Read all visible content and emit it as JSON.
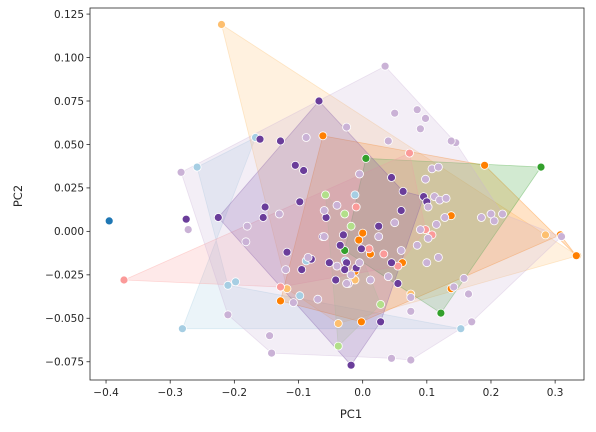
{
  "chart_data": {
    "type": "scatter",
    "title": "",
    "xlabel": "PC1",
    "ylabel": "PC2",
    "xlim": [
      -0.425,
      0.345
    ],
    "ylim": [
      -0.0855,
      0.1285
    ],
    "xticks": [
      -0.4,
      -0.3,
      -0.2,
      -0.1,
      0.0,
      0.1,
      0.2,
      0.3
    ],
    "xtick_labels": [
      "−0.4",
      "−0.3",
      "−0.2",
      "−0.1",
      "0.0",
      "0.1",
      "0.2",
      "0.3"
    ],
    "yticks": [
      -0.075,
      -0.05,
      -0.025,
      0.0,
      0.025,
      0.05,
      0.075,
      0.1,
      0.125
    ],
    "ytick_labels": [
      "−0.075",
      "−0.050",
      "−0.025",
      "0.000",
      "0.025",
      "0.050",
      "0.075",
      "0.100",
      "0.125"
    ],
    "grid": false,
    "legend": null,
    "series": [
      {
        "color": "#1f77b4",
        "hull": false,
        "points": [
          [
            -0.395,
            0.006
          ]
        ]
      },
      {
        "color": "#a6cee3",
        "hull": true,
        "hull_points": [
          [
            -0.281,
            -0.056
          ],
          [
            -0.167,
            0.054
          ],
          [
            -0.258,
            0.037
          ],
          [
            -0.21,
            -0.031
          ],
          [
            0.153,
            -0.056
          ]
        ],
        "points": [
          [
            -0.281,
            -0.056
          ],
          [
            -0.167,
            0.054
          ],
          [
            -0.258,
            0.037
          ],
          [
            -0.21,
            -0.031
          ],
          [
            -0.198,
            -0.029
          ],
          [
            -0.098,
            -0.037
          ],
          [
            -0.088,
            -0.017
          ],
          [
            -0.012,
            0.021
          ],
          [
            -0.027,
            -0.017
          ],
          [
            0.153,
            -0.056
          ]
        ]
      },
      {
        "color": "#fdbf6f",
        "hull": true,
        "hull_points": [
          [
            -0.22,
            0.119
          ],
          [
            -0.118,
            -0.033
          ],
          [
            -0.038,
            -0.053
          ],
          [
            0.335,
            -0.014
          ],
          [
            0.285,
            -0.002
          ]
        ],
        "points": [
          [
            -0.22,
            0.119
          ],
          [
            -0.118,
            -0.033
          ],
          [
            -0.038,
            -0.053
          ],
          [
            0.075,
            -0.036
          ],
          [
            0.335,
            -0.014
          ],
          [
            -0.012,
            -0.028
          ],
          [
            0.285,
            -0.002
          ]
        ]
      },
      {
        "color": "#ff7f00",
        "hull": true,
        "hull_points": [
          [
            -0.128,
            -0.04
          ],
          [
            -0.062,
            0.055
          ],
          [
            0.19,
            0.038
          ],
          [
            0.333,
            -0.014
          ],
          [
            0.308,
            -0.002
          ],
          [
            -0.002,
            -0.052
          ]
        ],
        "points": [
          [
            -0.128,
            -0.04
          ],
          [
            -0.062,
            0.055
          ],
          [
            0.19,
            0.038
          ],
          [
            0.333,
            -0.014
          ],
          [
            0.308,
            -0.002
          ],
          [
            -0.002,
            -0.052
          ],
          [
            0.0,
            -0.001
          ],
          [
            -0.006,
            -0.005
          ],
          [
            -0.012,
            -0.023
          ],
          [
            0.012,
            -0.013
          ],
          [
            0.138,
            -0.033
          ],
          [
            0.138,
            0.009
          ],
          [
            0.062,
            -0.018
          ]
        ]
      },
      {
        "color": "#33a02c",
        "hull": true,
        "hull_points": [
          [
            0.005,
            0.042
          ],
          [
            0.278,
            0.037
          ],
          [
            0.122,
            -0.047
          ],
          [
            -0.028,
            -0.011
          ]
        ],
        "points": [
          [
            0.005,
            0.042
          ],
          [
            0.278,
            0.037
          ],
          [
            0.122,
            -0.047
          ],
          [
            -0.028,
            -0.011
          ]
        ]
      },
      {
        "color": "#b2df8a",
        "hull": true,
        "hull_points": [
          [
            -0.058,
            0.021
          ],
          [
            -0.028,
            0.01
          ],
          [
            0.028,
            -0.042
          ],
          [
            -0.038,
            -0.066
          ]
        ],
        "points": [
          [
            -0.058,
            0.021
          ],
          [
            -0.028,
            0.01
          ],
          [
            0.028,
            -0.042
          ],
          [
            -0.038,
            -0.066
          ],
          [
            -0.018,
            0.003
          ]
        ]
      },
      {
        "color": "#fb9a99",
        "hull": true,
        "hull_points": [
          [
            -0.372,
            -0.028
          ],
          [
            0.073,
            0.045
          ],
          [
            0.098,
            0.001
          ],
          [
            0.055,
            -0.02
          ],
          [
            -0.128,
            -0.032
          ]
        ],
        "points": [
          [
            -0.372,
            -0.028
          ],
          [
            0.073,
            0.045
          ],
          [
            0.098,
            0.001
          ],
          [
            0.055,
            -0.02
          ],
          [
            -0.128,
            -0.032
          ],
          [
            -0.01,
            0.014
          ],
          [
            0.033,
            -0.013
          ],
          [
            0.01,
            -0.01
          ],
          [
            0.108,
            -0.002
          ]
        ]
      },
      {
        "color": "#6a3d9a",
        "hull": true,
        "hull_points": [
          [
            -0.068,
            0.075
          ],
          [
            0.063,
            0.023
          ],
          [
            0.095,
            0.02
          ],
          [
            0.028,
            -0.052
          ],
          [
            -0.018,
            -0.077
          ],
          [
            -0.225,
            0.008
          ]
        ],
        "points": [
          [
            -0.068,
            0.075
          ],
          [
            0.063,
            0.023
          ],
          [
            0.095,
            0.02
          ],
          [
            0.028,
            -0.052
          ],
          [
            -0.018,
            -0.077
          ],
          [
            -0.225,
            0.008
          ],
          [
            -0.275,
            0.007
          ],
          [
            -0.16,
            0.053
          ],
          [
            -0.155,
            0.008
          ],
          [
            -0.152,
            0.014
          ],
          [
            -0.105,
            0.038
          ],
          [
            -0.098,
            0.017
          ],
          [
            -0.092,
            0.035
          ],
          [
            -0.118,
            -0.012
          ],
          [
            -0.08,
            -0.016
          ],
          [
            -0.062,
            -0.003
          ],
          [
            -0.057,
            0.008
          ],
          [
            -0.042,
            -0.028
          ],
          [
            -0.035,
            -0.008
          ],
          [
            -0.03,
            -0.002
          ],
          [
            -0.025,
            -0.018
          ],
          [
            -0.01,
            -0.021
          ],
          [
            -0.002,
            -0.01
          ],
          [
            0.025,
            0.003
          ],
          [
            0.045,
            -0.018
          ],
          [
            0.055,
            -0.03
          ],
          [
            0.06,
            0.012
          ],
          [
            0.1,
            0.017
          ],
          [
            0.045,
            0.031
          ],
          [
            -0.028,
            -0.022
          ],
          [
            -0.052,
            -0.018
          ],
          [
            -0.095,
            -0.022
          ],
          [
            -0.128,
            0.052
          ]
        ]
      },
      {
        "color": "#cab2d6",
        "hull": true,
        "hull_points": [
          [
            -0.283,
            0.034
          ],
          [
            0.035,
            0.095
          ],
          [
            0.145,
            0.051
          ],
          [
            0.218,
            0.01
          ],
          [
            0.31,
            -0.003
          ],
          [
            0.17,
            -0.052
          ],
          [
            0.075,
            -0.074
          ],
          [
            0.045,
            -0.073
          ],
          [
            -0.142,
            -0.07
          ],
          [
            -0.21,
            -0.048
          ]
        ],
        "points": [
          [
            -0.283,
            0.034
          ],
          [
            0.035,
            0.095
          ],
          [
            0.145,
            0.051
          ],
          [
            0.218,
            0.01
          ],
          [
            0.31,
            -0.003
          ],
          [
            0.17,
            -0.052
          ],
          [
            0.075,
            -0.074
          ],
          [
            0.045,
            -0.073
          ],
          [
            -0.142,
            -0.07
          ],
          [
            -0.21,
            -0.048
          ],
          [
            -0.272,
            0.001
          ],
          [
            -0.182,
            -0.006
          ],
          [
            -0.088,
            0.054
          ],
          [
            -0.025,
            0.06
          ],
          [
            -0.005,
            0.033
          ],
          [
            0.05,
            0.068
          ],
          [
            0.085,
            0.07
          ],
          [
            0.09,
            0.059
          ],
          [
            0.098,
            0.065
          ],
          [
            0.138,
            0.052
          ],
          [
            0.108,
            0.036
          ],
          [
            0.118,
            0.037
          ],
          [
            0.098,
            0.03
          ],
          [
            0.112,
            0.02
          ],
          [
            0.12,
            0.018
          ],
          [
            0.13,
            0.019
          ],
          [
            0.102,
            0.014
          ],
          [
            0.128,
            0.008
          ],
          [
            0.115,
            0.004
          ],
          [
            0.09,
            0.001
          ],
          [
            0.102,
            -0.004
          ],
          [
            0.085,
            -0.008
          ],
          [
            0.1,
            -0.018
          ],
          [
            0.118,
            -0.015
          ],
          [
            0.142,
            -0.032
          ],
          [
            0.158,
            -0.027
          ],
          [
            0.165,
            -0.036
          ],
          [
            0.185,
            0.008
          ],
          [
            0.2,
            0.01
          ],
          [
            0.205,
            0.006
          ],
          [
            0.075,
            -0.038
          ],
          [
            0.075,
            -0.046
          ],
          [
            0.06,
            -0.011
          ],
          [
            0.05,
            0.005
          ],
          [
            0.025,
            -0.003
          ],
          [
            -0.06,
            0.012
          ],
          [
            -0.04,
            0.015
          ],
          [
            -0.06,
            -0.003
          ],
          [
            -0.07,
            -0.039
          ],
          [
            -0.022,
            -0.03
          ],
          [
            -0.018,
            -0.025
          ],
          [
            -0.005,
            -0.018
          ],
          [
            0.012,
            -0.028
          ],
          [
            0.04,
            -0.026
          ],
          [
            0.04,
            0.052
          ],
          [
            -0.145,
            -0.06
          ],
          [
            -0.108,
            -0.041
          ],
          [
            -0.13,
            0.01
          ],
          [
            -0.18,
            0.003
          ],
          [
            -0.085,
            -0.015
          ],
          [
            -0.12,
            -0.022
          ],
          [
            -0.04,
            -0.02
          ],
          [
            -0.025,
            -0.03
          ]
        ]
      }
    ]
  }
}
